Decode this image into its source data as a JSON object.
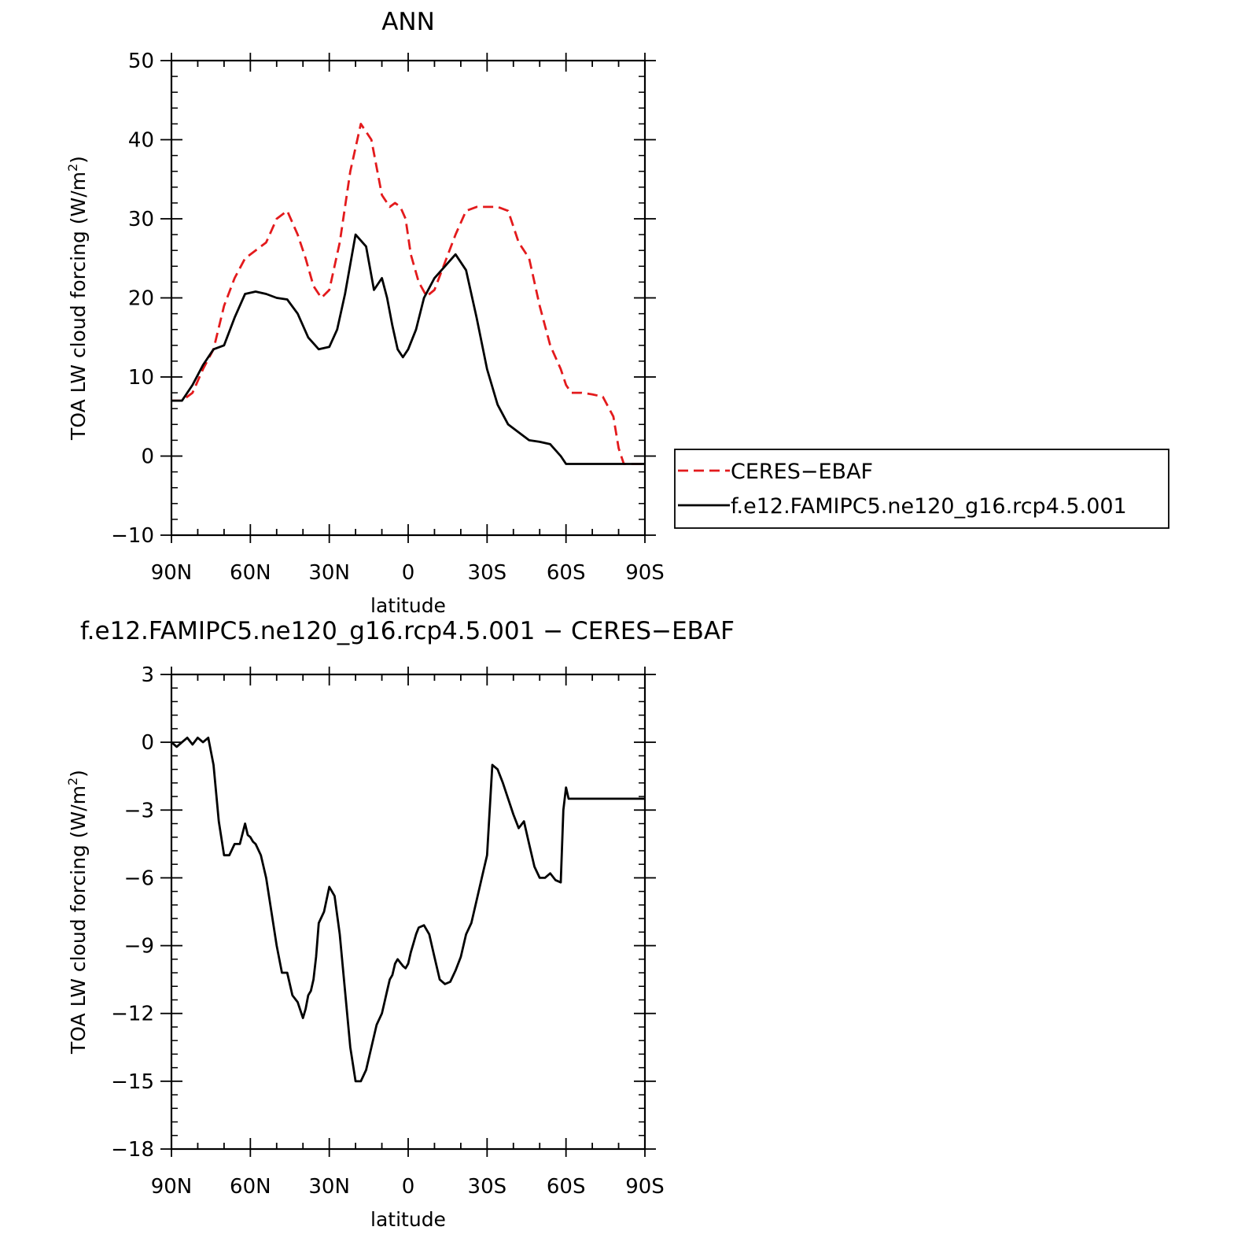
{
  "colors": {
    "ceres": "#e31a1c",
    "model": "#000000",
    "background": "#ffffff"
  },
  "chart_data": [
    {
      "type": "line",
      "title": "ANN",
      "xlabel": "latitude",
      "ylabel": "TOA LW cloud forcing (W/m²)",
      "ylabel_prefix": "TOA LW cloud forcing (W/m",
      "ylabel_sup": "2",
      "ylabel_suffix": ")",
      "xlim": [
        90,
        -90
      ],
      "ylim": [
        -10,
        50
      ],
      "xticks": [
        90,
        60,
        30,
        0,
        -30,
        -60,
        -90
      ],
      "xticklabels": [
        "90N",
        "60N",
        "30N",
        "0",
        "30S",
        "60S",
        "90S"
      ],
      "yticks": [
        -10,
        0,
        10,
        20,
        30,
        40,
        50
      ],
      "yticklabels": [
        "−10",
        "0",
        "10",
        "20",
        "30",
        "40",
        "50"
      ],
      "legend": {
        "placement": "right"
      },
      "series": [
        {
          "name": "CERES−EBAF",
          "style": "dashed",
          "color": "#e31a1c",
          "x": [
            90,
            86,
            82,
            78,
            74,
            70,
            66,
            62,
            58,
            54,
            50,
            46,
            42,
            39,
            36,
            33,
            30,
            26,
            22,
            18,
            14,
            10,
            7,
            5,
            3,
            1,
            -1,
            -4,
            -7,
            -10,
            -14,
            -18,
            -22,
            -26,
            -30,
            -34,
            -38,
            -42,
            -46,
            -50,
            -54,
            -58,
            -60,
            -62,
            -64,
            -66,
            -70,
            -74,
            -78,
            -80,
            -82,
            -84,
            -86,
            -88,
            -90
          ],
          "y": [
            7,
            7,
            8,
            11,
            13.5,
            19,
            22.5,
            25,
            26,
            27,
            30,
            31,
            28,
            25,
            21.5,
            20,
            21,
            27,
            36,
            42,
            40,
            33,
            31.5,
            32,
            31.5,
            30,
            25.5,
            22,
            20.2,
            21,
            24.5,
            28,
            31,
            31.5,
            31.5,
            31.5,
            31,
            27,
            25,
            19,
            14,
            11,
            9,
            8,
            8,
            8,
            7.8,
            7.5,
            5,
            1,
            -1,
            -1,
            -1,
            -1,
            -1
          ]
        },
        {
          "name": "f.e12.FAMIPC5.ne120_g16.rcp4.5.001",
          "style": "solid",
          "color": "#000000",
          "x": [
            90,
            86,
            82,
            78,
            74,
            70,
            66,
            62,
            58,
            54,
            50,
            46,
            42,
            38,
            34,
            30,
            27,
            24,
            20,
            16,
            13,
            10,
            8,
            6,
            4,
            2,
            0,
            -3,
            -6,
            -10,
            -14,
            -18,
            -22,
            -26,
            -30,
            -34,
            -38,
            -42,
            -46,
            -50,
            -54,
            -58,
            -60,
            -62,
            -64,
            -66,
            -68,
            -70,
            -72,
            -74,
            -76,
            -78,
            -80,
            -82,
            -84,
            -86,
            -88,
            -90
          ],
          "y": [
            7,
            7,
            9,
            11.5,
            13.5,
            14,
            17.5,
            20.5,
            20.8,
            20.5,
            20,
            19.8,
            18,
            15,
            13.5,
            13.8,
            16,
            20.5,
            28,
            26.5,
            21,
            22.5,
            20,
            16.5,
            13.5,
            12.5,
            13.5,
            16,
            20,
            22.5,
            24,
            25.5,
            23.5,
            17.5,
            11,
            6.5,
            4,
            3,
            2,
            1.8,
            1.5,
            0,
            -1,
            -1,
            -1,
            -1,
            -1,
            -1,
            -1,
            -1,
            -1,
            -1,
            -1,
            -1,
            -1,
            -1,
            -1,
            -1
          ]
        }
      ]
    },
    {
      "type": "line",
      "title": "f.e12.FAMIPC5.ne120_g16.rcp4.5.001 − CERES−EBAF",
      "xlabel": "latitude",
      "ylabel": "TOA LW cloud forcing (W/m²)",
      "ylabel_prefix": "TOA LW cloud forcing (W/m",
      "ylabel_sup": "2",
      "ylabel_suffix": ")",
      "xlim": [
        90,
        -90
      ],
      "ylim": [
        -18,
        3
      ],
      "xticks": [
        90,
        60,
        30,
        0,
        -30,
        -60,
        -90
      ],
      "xticklabels": [
        "90N",
        "60N",
        "30N",
        "0",
        "30S",
        "60S",
        "90S"
      ],
      "yticks": [
        -18,
        -15,
        -12,
        -9,
        -6,
        -3,
        0,
        3
      ],
      "yticklabels": [
        "−18",
        "−15",
        "−12",
        "−9",
        "−6",
        "−3",
        "0",
        "3"
      ],
      "series": [
        {
          "style": "solid",
          "color": "#000000",
          "x": [
            90,
            88,
            86,
            84,
            82,
            80,
            78,
            76,
            74,
            72,
            70,
            68,
            66,
            64,
            62,
            61,
            60,
            59,
            58,
            56,
            54,
            52,
            50,
            48,
            46,
            44,
            42,
            40,
            39,
            38,
            37,
            36,
            35,
            34,
            32,
            30,
            28,
            26,
            24,
            22,
            20,
            18,
            16,
            14,
            12,
            10,
            9,
            8,
            7,
            6,
            5,
            4,
            2,
            1,
            0,
            -1,
            -2,
            -3,
            -4,
            -6,
            -8,
            -10,
            -12,
            -14,
            -16,
            -18,
            -20,
            -22,
            -24,
            -26,
            -28,
            -30,
            -32,
            -34,
            -36,
            -38,
            -40,
            -42,
            -44,
            -46,
            -48,
            -50,
            -52,
            -54,
            -56,
            -58,
            -59,
            -60,
            -61,
            -62,
            -64,
            -66,
            -68,
            -70,
            -72,
            -74,
            -75,
            -76,
            -77,
            -78,
            -79,
            -80,
            -81,
            -82,
            -84,
            -85,
            -86,
            -87,
            -88,
            -89,
            -90
          ],
          "y": [
            0,
            -0.2,
            0,
            0.2,
            -0.1,
            0.2,
            0,
            0.2,
            -1,
            -3.5,
            -5,
            -5,
            -4.5,
            -4.5,
            -3.6,
            -4.1,
            -4.2,
            -4.4,
            -4.5,
            -5,
            -6,
            -7.5,
            -9,
            -10.2,
            -10.2,
            -11.2,
            -11.5,
            -12.2,
            -11.8,
            -11.2,
            -11,
            -10.5,
            -9.5,
            -8,
            -7.5,
            -6.4,
            -6.8,
            -8.5,
            -11,
            -13.5,
            -15,
            -15,
            -14.5,
            -13.5,
            -12.5,
            -12,
            -11.5,
            -11,
            -10.5,
            -10.3,
            -9.8,
            -9.6,
            -9.9,
            -10,
            -9.8,
            -9.3,
            -8.9,
            -8.5,
            -8.2,
            -8.1,
            -8.5,
            -9.5,
            -10.5,
            -10.7,
            -10.6,
            -10.1,
            -9.5,
            -8.5,
            -8,
            -7,
            -6,
            -5,
            -1,
            -1.2,
            -1.8,
            -2.5,
            -3.2,
            -3.8,
            -3.5,
            -4.5,
            -5.5,
            -6,
            -6,
            -5.8,
            -6.1,
            -6.2,
            -3,
            -2,
            -2.5,
            -2.5,
            -2.5,
            -2.5,
            -2.5,
            -2.5,
            -2.5,
            -2.5,
            -2.5,
            -2.5,
            -2.5,
            -2.5,
            -2.5,
            -2.5,
            -2.5,
            -2.5,
            -2.5,
            -2.5,
            -2.5,
            -2.5,
            -2.5,
            -2.5,
            -2.5
          ]
        }
      ]
    }
  ]
}
